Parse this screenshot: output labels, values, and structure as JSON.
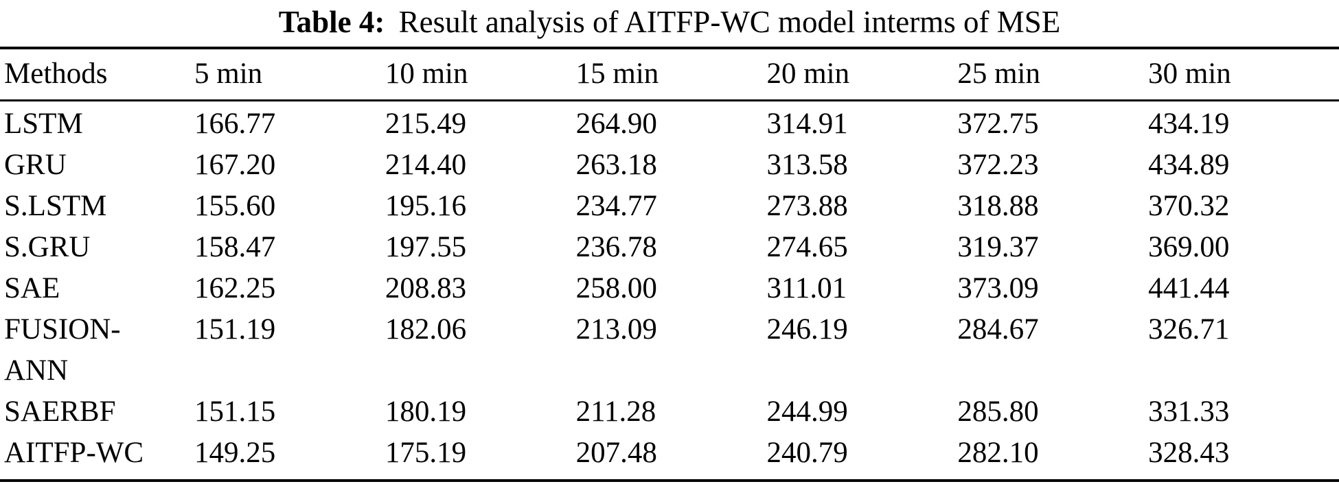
{
  "caption": {
    "label": "Table 4:",
    "text": "Result analysis of AITFP-WC model interms of MSE"
  },
  "table": {
    "columns": [
      "Methods",
      "5 min",
      "10 min",
      "15 min",
      "20 min",
      "25 min",
      "30 min"
    ],
    "rows": [
      {
        "method": "LSTM",
        "values": [
          "166.77",
          "215.49",
          "264.90",
          "314.91",
          "372.75",
          "434.19"
        ]
      },
      {
        "method": "GRU",
        "values": [
          "167.20",
          "214.40",
          "263.18",
          "313.58",
          "372.23",
          "434.89"
        ]
      },
      {
        "method": "S.LSTM",
        "values": [
          "155.60",
          "195.16",
          "234.77",
          "273.88",
          "318.88",
          "370.32"
        ]
      },
      {
        "method": "S.GRU",
        "values": [
          "158.47",
          "197.55",
          "236.78",
          "274.65",
          "319.37",
          "369.00"
        ]
      },
      {
        "method": "SAE",
        "values": [
          "162.25",
          "208.83",
          "258.00",
          "311.01",
          "373.09",
          "441.44"
        ]
      },
      {
        "method": "FUSION-ANN",
        "values": [
          "151.19",
          "182.06",
          "213.09",
          "246.19",
          "284.67",
          "326.71"
        ]
      },
      {
        "method": "SAERBF",
        "values": [
          "151.15",
          "180.19",
          "211.28",
          "244.99",
          "285.80",
          "331.33"
        ]
      },
      {
        "method": "AITFP-WC",
        "values": [
          "149.25",
          "175.19",
          "207.48",
          "240.79",
          "282.10",
          "328.43"
        ]
      }
    ]
  },
  "colors": {
    "text": "#000000",
    "background": "#ffffff",
    "rule": "#000000"
  }
}
